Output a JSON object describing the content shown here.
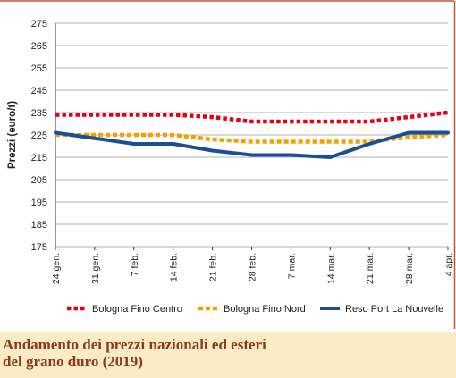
{
  "chart_data": {
    "type": "line",
    "title": "",
    "xlabel": "",
    "ylabel": "Prezzi (euro/t)",
    "categories": [
      "24 gen.",
      "31 gen.",
      "7 feb.",
      "14 feb.",
      "21 feb.",
      "28 feb.",
      "7 mar.",
      "14 mar.",
      "21 mar.",
      "28 mar.",
      "4 apr."
    ],
    "ylim": [
      175,
      275
    ],
    "yticks": [
      175,
      185,
      195,
      205,
      215,
      225,
      235,
      245,
      255,
      265,
      275
    ],
    "grid": "horizontal",
    "legend_position": "bottom",
    "series": [
      {
        "name": "Bologna Fino Centro",
        "values": [
          234,
          234,
          234,
          234,
          233,
          231,
          231,
          231,
          231,
          233,
          235
        ],
        "color": "#e3001b",
        "style": "dotted"
      },
      {
        "name": "Bologna Fino Nord",
        "values": [
          225,
          225,
          225,
          225,
          223,
          222,
          222,
          222,
          222,
          224,
          225
        ],
        "color": "#f2a100",
        "style": "dashed"
      },
      {
        "name": "Reso Port La Nouvelle",
        "values": [
          226,
          223.5,
          221,
          221,
          218,
          216,
          216,
          215,
          221,
          226,
          226
        ],
        "color": "#1a4f96",
        "style": "solid"
      }
    ]
  },
  "caption": {
    "text": "Andamento dei prezzi nazionali ed esteri\ndel grano duro (2019)"
  },
  "colors": {
    "border": "#c1562b",
    "grid": "#9a9a9a",
    "caption_bg": "#f9ebc6",
    "caption_text": "#8a3a1a"
  }
}
